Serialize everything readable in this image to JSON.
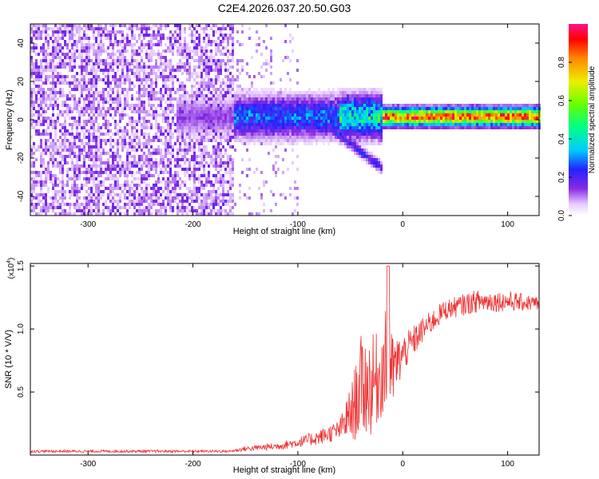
{
  "title": "C2E4.2026.037.20.50.G03",
  "chart_data": [
    {
      "type": "heatmap",
      "panel": "top",
      "xlabel": "Height of straight line (km)",
      "ylabel": "Frequency (Hz)",
      "xlim": [
        -355,
        130
      ],
      "ylim": [
        -50,
        50
      ],
      "xticks": [
        -300,
        -200,
        -100,
        0,
        100
      ],
      "yticks": [
        -40,
        -20,
        0,
        20,
        40
      ],
      "colorbar": {
        "label": "Normalized spectral amplitude",
        "range": [
          0.0,
          1.0
        ],
        "ticks": [
          "0.0",
          "0.2",
          "0.4",
          "0.6",
          "0.8"
        ]
      },
      "features": {
        "noise_region_end_km": -160,
        "sparse_region_end_km": -100,
        "carrier_frequency_hz": 1.5,
        "carrier_peak_amplitude": 0.97,
        "secondary_branch_end_km": -20,
        "secondary_branch_end_freq_hz": -25
      }
    },
    {
      "type": "line",
      "panel": "bottom",
      "xlabel": "Height of straight line (km)",
      "ylabel": "SNR (10 * V/V)",
      "multiplier": "(x10",
      "multiplier_exp": "4",
      "multiplier_close": ")",
      "xlim": [
        -355,
        130
      ],
      "ylim": [
        0.0,
        1.52
      ],
      "xticks": [
        -300,
        -200,
        -100,
        0,
        100
      ],
      "yticks": [
        "0.5",
        "1.0",
        "1.5"
      ],
      "ytick_values": [
        0.5,
        1.0,
        1.5
      ],
      "color": "#ee3333",
      "profile": [
        {
          "x": -355,
          "mean": 0.03,
          "noise": 0.01
        },
        {
          "x": -165,
          "mean": 0.03,
          "noise": 0.01
        },
        {
          "x": -150,
          "mean": 0.05,
          "noise": 0.02
        },
        {
          "x": -120,
          "mean": 0.07,
          "noise": 0.03
        },
        {
          "x": -100,
          "mean": 0.1,
          "noise": 0.04
        },
        {
          "x": -80,
          "mean": 0.14,
          "noise": 0.06
        },
        {
          "x": -60,
          "mean": 0.2,
          "noise": 0.08
        },
        {
          "x": -48,
          "mean": 0.35,
          "noise": 0.25
        },
        {
          "x": -40,
          "mean": 0.55,
          "noise": 0.4
        },
        {
          "x": -30,
          "mean": 0.55,
          "noise": 0.4
        },
        {
          "x": -20,
          "mean": 0.65,
          "noise": 0.35
        },
        {
          "x": -14,
          "mean": 0.8,
          "noise": 0.45
        },
        {
          "x": -10,
          "mean": 0.65,
          "noise": 0.3
        },
        {
          "x": 0,
          "mean": 0.8,
          "noise": 0.15
        },
        {
          "x": 20,
          "mean": 1.0,
          "noise": 0.1
        },
        {
          "x": 40,
          "mean": 1.15,
          "noise": 0.08
        },
        {
          "x": 70,
          "mean": 1.22,
          "noise": 0.09
        },
        {
          "x": 100,
          "mean": 1.22,
          "noise": 0.08
        },
        {
          "x": 130,
          "mean": 1.2,
          "noise": 0.06
        }
      ]
    }
  ]
}
